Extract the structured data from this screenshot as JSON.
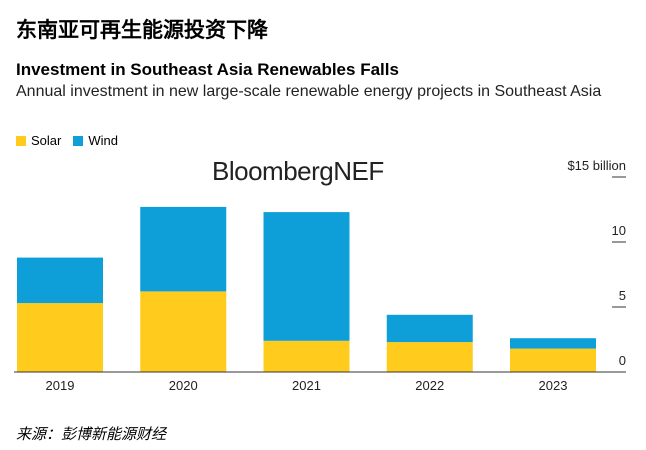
{
  "header": {
    "cn_title": "东南亚可再生能源投资下降",
    "title": "Investment in Southeast Asia Renewables Falls",
    "subtitle": "Annual investment in new large-scale renewable energy projects in Southeast Asia"
  },
  "logo": "BloombergNEF",
  "source": "来源：彭博新能源财经",
  "colors": {
    "solar": "#FFCC1E",
    "wind": "#0F9FD8"
  },
  "chart_data": {
    "type": "bar",
    "stacked": true,
    "categories": [
      "2019",
      "2020",
      "2021",
      "2022",
      "2023"
    ],
    "series": [
      {
        "name": "Solar",
        "values": [
          5.3,
          6.2,
          2.4,
          2.3,
          1.8
        ]
      },
      {
        "name": "Wind",
        "values": [
          3.5,
          6.5,
          9.9,
          2.1,
          0.8
        ]
      }
    ],
    "ylim": [
      0,
      15
    ],
    "yticks": [
      0,
      5,
      10,
      15
    ],
    "ytick_labels": [
      "0",
      "5",
      "10",
      "$15 billion"
    ],
    "legend_placement": "top-left",
    "grid": false
  }
}
